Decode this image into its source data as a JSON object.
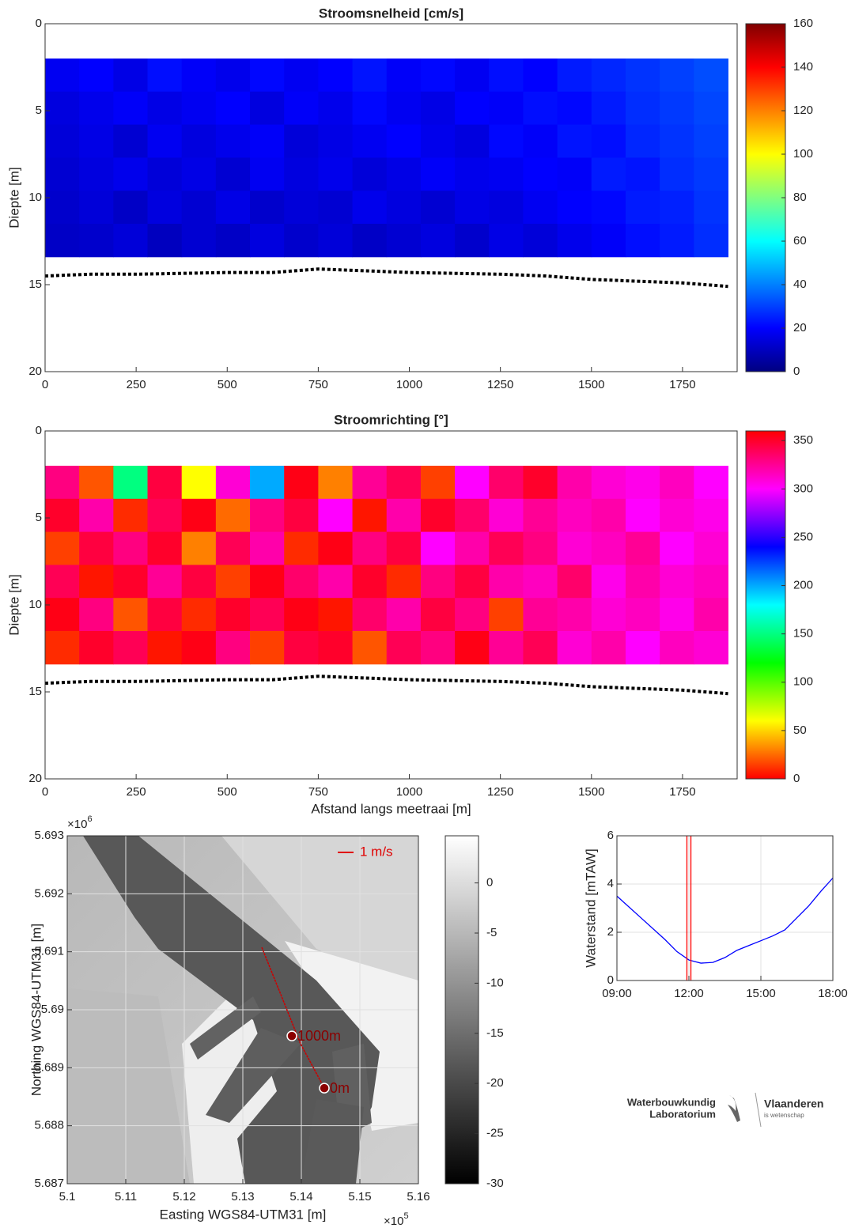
{
  "chart_data": [
    {
      "type": "heatmap",
      "title": "Stroomsnelheid [cm/s]",
      "ylabel": "Diepte [m]",
      "xlim": [
        0,
        1900
      ],
      "xticks": [
        0,
        250,
        500,
        750,
        1000,
        1250,
        1500,
        1750
      ],
      "ylim": [
        0,
        20
      ],
      "yticks": [
        0,
        5,
        10,
        15,
        20
      ],
      "y_reversed": true,
      "colormap": "jet",
      "clim": [
        0,
        160
      ],
      "cticks": [
        0,
        20,
        40,
        60,
        80,
        100,
        120,
        140,
        160
      ],
      "x_edges": [
        0,
        93.75,
        187.5,
        281.25,
        375,
        468.75,
        562.5,
        656.25,
        750,
        843.75,
        937.5,
        1031.25,
        1125,
        1218.75,
        1312.5,
        1406.25,
        1500,
        1593.75,
        1687.5,
        1781.25,
        1875
      ],
      "y_edges": [
        2,
        3.9,
        5.8,
        7.7,
        9.6,
        11.5,
        13.4
      ],
      "z": [
        [
          18,
          20,
          16,
          22,
          19,
          17,
          21,
          18,
          20,
          23,
          19,
          21,
          18,
          22,
          20,
          24,
          26,
          28,
          30,
          32
        ],
        [
          15,
          17,
          19,
          16,
          18,
          20,
          15,
          19,
          17,
          21,
          18,
          16,
          20,
          19,
          22,
          21,
          24,
          27,
          29,
          31
        ],
        [
          14,
          16,
          13,
          18,
          15,
          17,
          19,
          14,
          16,
          18,
          20,
          17,
          15,
          21,
          19,
          23,
          22,
          26,
          28,
          30
        ],
        [
          13,
          15,
          17,
          14,
          16,
          13,
          18,
          15,
          17,
          14,
          16,
          19,
          17,
          18,
          20,
          19,
          24,
          23,
          27,
          29
        ],
        [
          12,
          14,
          11,
          15,
          13,
          16,
          12,
          14,
          13,
          17,
          15,
          13,
          16,
          15,
          18,
          20,
          21,
          24,
          25,
          28
        ],
        [
          11,
          12,
          14,
          10,
          13,
          11,
          15,
          12,
          14,
          11,
          13,
          15,
          12,
          16,
          14,
          17,
          19,
          22,
          24,
          27
        ]
      ],
      "bed": {
        "color": "#000000",
        "x": [
          0,
          125,
          250,
          375,
          500,
          625,
          750,
          875,
          1000,
          1125,
          1250,
          1375,
          1500,
          1625,
          1750,
          1875
        ],
        "y": [
          14.5,
          14.4,
          14.4,
          14.35,
          14.3,
          14.3,
          14.1,
          14.2,
          14.3,
          14.35,
          14.4,
          14.5,
          14.7,
          14.8,
          14.9,
          15.1
        ]
      }
    },
    {
      "type": "heatmap",
      "title": "Stroomrichting [°]",
      "ylabel": "Diepte [m]",
      "xlabel": "Afstand langs meetraai [m]",
      "xlim": [
        0,
        1900
      ],
      "xticks": [
        0,
        250,
        500,
        750,
        1000,
        1250,
        1500,
        1750
      ],
      "ylim": [
        0,
        20
      ],
      "yticks": [
        0,
        5,
        10,
        15,
        20
      ],
      "y_reversed": true,
      "colormap": "hsv",
      "clim": [
        0,
        360
      ],
      "cticks": [
        0,
        50,
        100,
        150,
        200,
        250,
        300,
        350
      ],
      "x_edges": [
        0,
        93.75,
        187.5,
        281.25,
        375,
        468.75,
        562.5,
        656.25,
        750,
        843.75,
        937.5,
        1031.25,
        1125,
        1218.75,
        1312.5,
        1406.25,
        1500,
        1593.75,
        1687.5,
        1781.25,
        1875
      ],
      "y_edges": [
        2,
        3.9,
        5.8,
        7.7,
        9.6,
        11.5,
        13.4
      ],
      "z": [
        [
          330,
          20,
          150,
          345,
          60,
          310,
          200,
          355,
          30,
          325,
          340,
          15,
          300,
          335,
          350,
          320,
          310,
          305,
          315,
          300
        ],
        [
          350,
          320,
          10,
          340,
          355,
          25,
          330,
          345,
          300,
          5,
          320,
          350,
          335,
          310,
          325,
          315,
          320,
          300,
          310,
          305
        ],
        [
          15,
          345,
          330,
          350,
          30,
          340,
          320,
          10,
          355,
          330,
          345,
          300,
          320,
          340,
          330,
          310,
          315,
          325,
          300,
          310
        ],
        [
          340,
          5,
          350,
          325,
          345,
          15,
          355,
          335,
          320,
          350,
          10,
          330,
          345,
          320,
          315,
          335,
          305,
          320,
          310,
          315
        ],
        [
          355,
          330,
          20,
          345,
          10,
          350,
          340,
          355,
          5,
          335,
          320,
          345,
          330,
          15,
          325,
          320,
          310,
          315,
          305,
          320
        ],
        [
          10,
          350,
          340,
          5,
          355,
          330,
          15,
          345,
          350,
          20,
          340,
          330,
          355,
          325,
          340,
          310,
          320,
          300,
          315,
          310
        ]
      ],
      "bed": {
        "color": "#000000",
        "x": [
          0,
          125,
          250,
          375,
          500,
          625,
          750,
          875,
          1000,
          1125,
          1250,
          1375,
          1500,
          1625,
          1750,
          1875
        ],
        "y": [
          14.5,
          14.4,
          14.4,
          14.35,
          14.3,
          14.3,
          14.1,
          14.2,
          14.3,
          14.35,
          14.4,
          14.5,
          14.7,
          14.8,
          14.9,
          15.1
        ]
      }
    },
    {
      "type": "map",
      "xlabel": "Easting WGS84-UTM31 [m]",
      "ylabel": "Northing WGS84-UTM31 [m]",
      "x_exponent": "×10",
      "x_exponent_power": "5",
      "y_exponent": "×10",
      "y_exponent_power": "6",
      "xlim": [
        510000,
        516000
      ],
      "ylim": [
        5687000,
        5693000
      ],
      "grid": true,
      "xticks": [
        {
          "value": 510000,
          "label": "5.1"
        },
        {
          "value": 511000,
          "label": "5.11"
        },
        {
          "value": 512000,
          "label": "5.12"
        },
        {
          "value": 513000,
          "label": "5.13"
        },
        {
          "value": 514000,
          "label": "5.14"
        },
        {
          "value": 515000,
          "label": "5.15"
        },
        {
          "value": 516000,
          "label": "5.16"
        }
      ],
      "yticks": [
        {
          "value": 5687000,
          "label": "5.687"
        },
        {
          "value": 5688000,
          "label": "5.688"
        },
        {
          "value": 5689000,
          "label": "5.689"
        },
        {
          "value": 5690000,
          "label": "5.69"
        },
        {
          "value": 5691000,
          "label": "5.691"
        },
        {
          "value": 5692000,
          "label": "5.692"
        },
        {
          "value": 5693000,
          "label": "5.693"
        }
      ],
      "colormap": "gray",
      "clim": [
        -30,
        4.7
      ],
      "cticks": [
        -30,
        -25,
        -20,
        -15,
        -10,
        -5,
        0
      ],
      "legend": "1 m/s",
      "legend_color": "#e00000",
      "transect": {
        "color": "#cc0000",
        "x": [
          513324,
          513716,
          513986,
          514392
        ],
        "y": [
          5691077,
          5690095,
          5689413,
          5688650
        ]
      },
      "points": [
        {
          "label": "0m",
          "x": 514392,
          "y": 5688648
        },
        {
          "label": "1000m",
          "x": 513838,
          "y": 5689548
        }
      ],
      "point_color": "#8b0000"
    },
    {
      "type": "line",
      "ylabel": "Waterstand [mTAW]",
      "color": "#0000ff",
      "grid": true,
      "x": [
        "09:00",
        "10:00",
        "11:00",
        "11:30",
        "12:00",
        "12:30",
        "13:00",
        "13:30",
        "14:00",
        "14:30",
        "15:00",
        "15:30",
        "16:00",
        "16:30",
        "17:00",
        "17:30",
        "18:00"
      ],
      "values": [
        3.5,
        2.6,
        1.7,
        1.2,
        0.85,
        0.72,
        0.75,
        0.95,
        1.25,
        1.45,
        1.65,
        1.85,
        2.1,
        2.6,
        3.1,
        3.7,
        4.25
      ],
      "xlim": [
        "09:00",
        "18:00"
      ],
      "xticks": [
        "09:00",
        "12:00",
        "15:00",
        "18:00"
      ],
      "ylim": [
        0,
        6
      ],
      "yticks": [
        0,
        2,
        4,
        6
      ],
      "vlines": [
        "11:55",
        "12:05"
      ],
      "vline_color": "#ff0000"
    }
  ],
  "logo": {
    "lab_line1": "Waterbouwkundig",
    "lab_line2": "Laboratorium",
    "brand": "Vlaanderen",
    "tagline": "is wetenschap"
  }
}
